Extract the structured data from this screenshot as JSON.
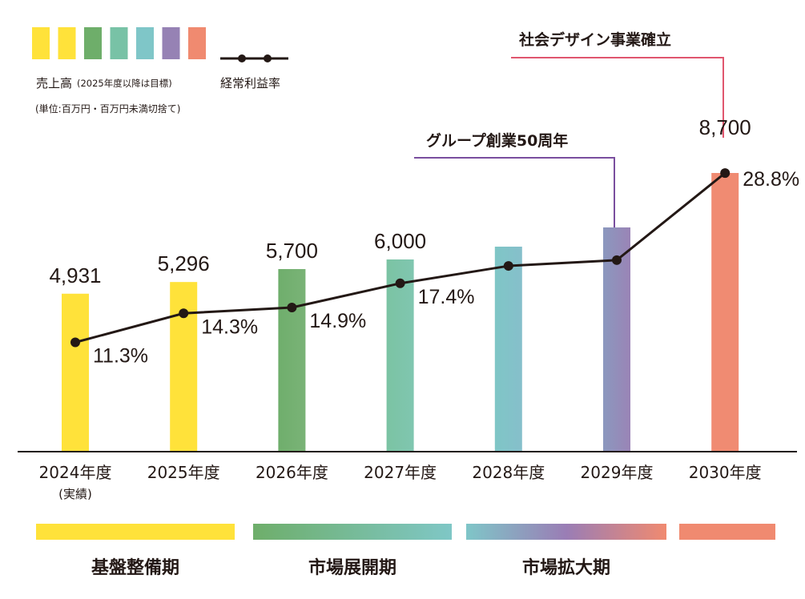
{
  "legend": {
    "sales_label": "売上高",
    "sales_note": "(2025年度以降は目標)",
    "unit_note": "(単位:百万円・百万円未満切捨て)",
    "margin_label": "経常利益率",
    "swatch_colors": [
      "#FFE23A",
      "#FFE23A",
      "#6EAE6A",
      "#78C2A6",
      "#7FC6C8",
      "#9682B4",
      "#F08A70"
    ]
  },
  "chart_data": {
    "type": "bar",
    "title": "",
    "xlabel": "",
    "ylabel": "",
    "categories": [
      "2024年度",
      "2025年度",
      "2026年度",
      "2027年度",
      "2028年度",
      "2029年度",
      "2030年度"
    ],
    "category_sublabels": [
      "(実績)",
      "",
      "",
      "",
      "",
      "",
      ""
    ],
    "ylim": [
      0,
      10000
    ],
    "series": [
      {
        "name": "売上高",
        "values": [
          4931,
          5296,
          5700,
          6000,
          6400,
          7000,
          8700
        ],
        "value_labels": [
          "4,931",
          "5,296",
          "5,700",
          "6,000",
          "",
          "",
          "8,700"
        ]
      },
      {
        "name": "経常利益率",
        "type": "line",
        "unit": "%",
        "ylim": [
          0,
          40
        ],
        "values": [
          11.3,
          14.3,
          14.9,
          17.4,
          19.2,
          19.8,
          28.8
        ],
        "value_labels": [
          "11.3%",
          "14.3%",
          "14.9%",
          "17.4%",
          "",
          "",
          "28.8%"
        ]
      }
    ],
    "bar_colors": [
      [
        "#FFE23A",
        "#FFE23A"
      ],
      [
        "#FFE23A",
        "#FFE23A"
      ],
      [
        "#6FAE6C",
        "#7AB377"
      ],
      [
        "#7BC3A3",
        "#80C6B0"
      ],
      [
        "#7FC6C6",
        "#86BFCB"
      ],
      [
        "#8B98BE",
        "#9A84B6"
      ],
      [
        "#F08B72",
        "#F08B72"
      ]
    ],
    "annotations": [
      {
        "text": "グループ創業50周年",
        "category": "2029年度",
        "color": "#7A4E9E"
      },
      {
        "text": "社会デザイン事業確立",
        "category": "2030年度",
        "color": "#E0566E"
      }
    ],
    "phases": [
      {
        "label": "基盤整備期",
        "from": "2024年度",
        "to": "2025年度",
        "colors": [
          "#FFE23A",
          "#FFE23A"
        ]
      },
      {
        "label": "市場展開期",
        "from": "2026年度",
        "to": "2027年度",
        "colors": [
          "#6EAE6A",
          "#7FC7C6"
        ]
      },
      {
        "label": "市場拡大期",
        "from": "2028年度",
        "to": "2029年度",
        "colors": [
          "#7FC6C8",
          "#9A7DB5",
          "#F08A70"
        ]
      },
      {
        "label": "",
        "from": "2030年度",
        "to": "2030年度",
        "colors": [
          "#F08A70",
          "#F08A70"
        ]
      }
    ]
  }
}
